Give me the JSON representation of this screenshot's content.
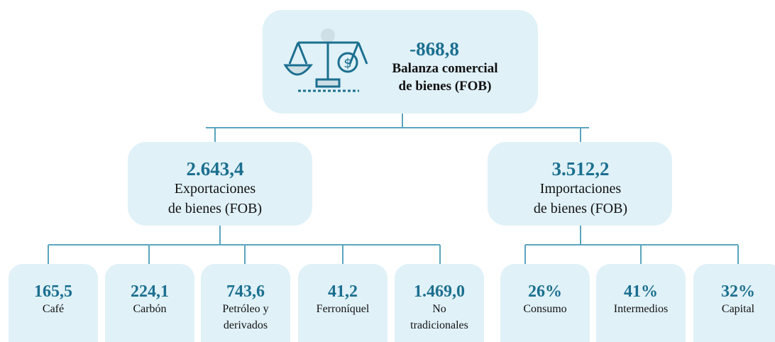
{
  "top": {
    "value": "-868,8",
    "label": [
      "Balanza comercial",
      "de bienes (FOB)"
    ]
  },
  "branches": [
    {
      "value": "2.643,4",
      "label": [
        "Exportaciones",
        "de bienes (FOB)"
      ],
      "children": [
        {
          "value": "165,5",
          "label": [
            "Café"
          ]
        },
        {
          "value": "224,1",
          "label": [
            "Carbón"
          ]
        },
        {
          "value": "743,6",
          "label": [
            "Petróleo y",
            "derivados"
          ]
        },
        {
          "value": "41,2",
          "label": [
            "Ferroníquel"
          ]
        },
        {
          "value": "1.469,0",
          "label": [
            "No",
            "tradicionales"
          ]
        }
      ]
    },
    {
      "value": "3.512,2",
      "label": [
        "Importaciones",
        "de bienes (FOB)"
      ],
      "children": [
        {
          "value": "26%",
          "label": [
            "Consumo"
          ]
        },
        {
          "value": "41%",
          "label": [
            "Intermedios"
          ]
        },
        {
          "value": "32%",
          "label": [
            "Capital"
          ]
        }
      ]
    }
  ]
}
